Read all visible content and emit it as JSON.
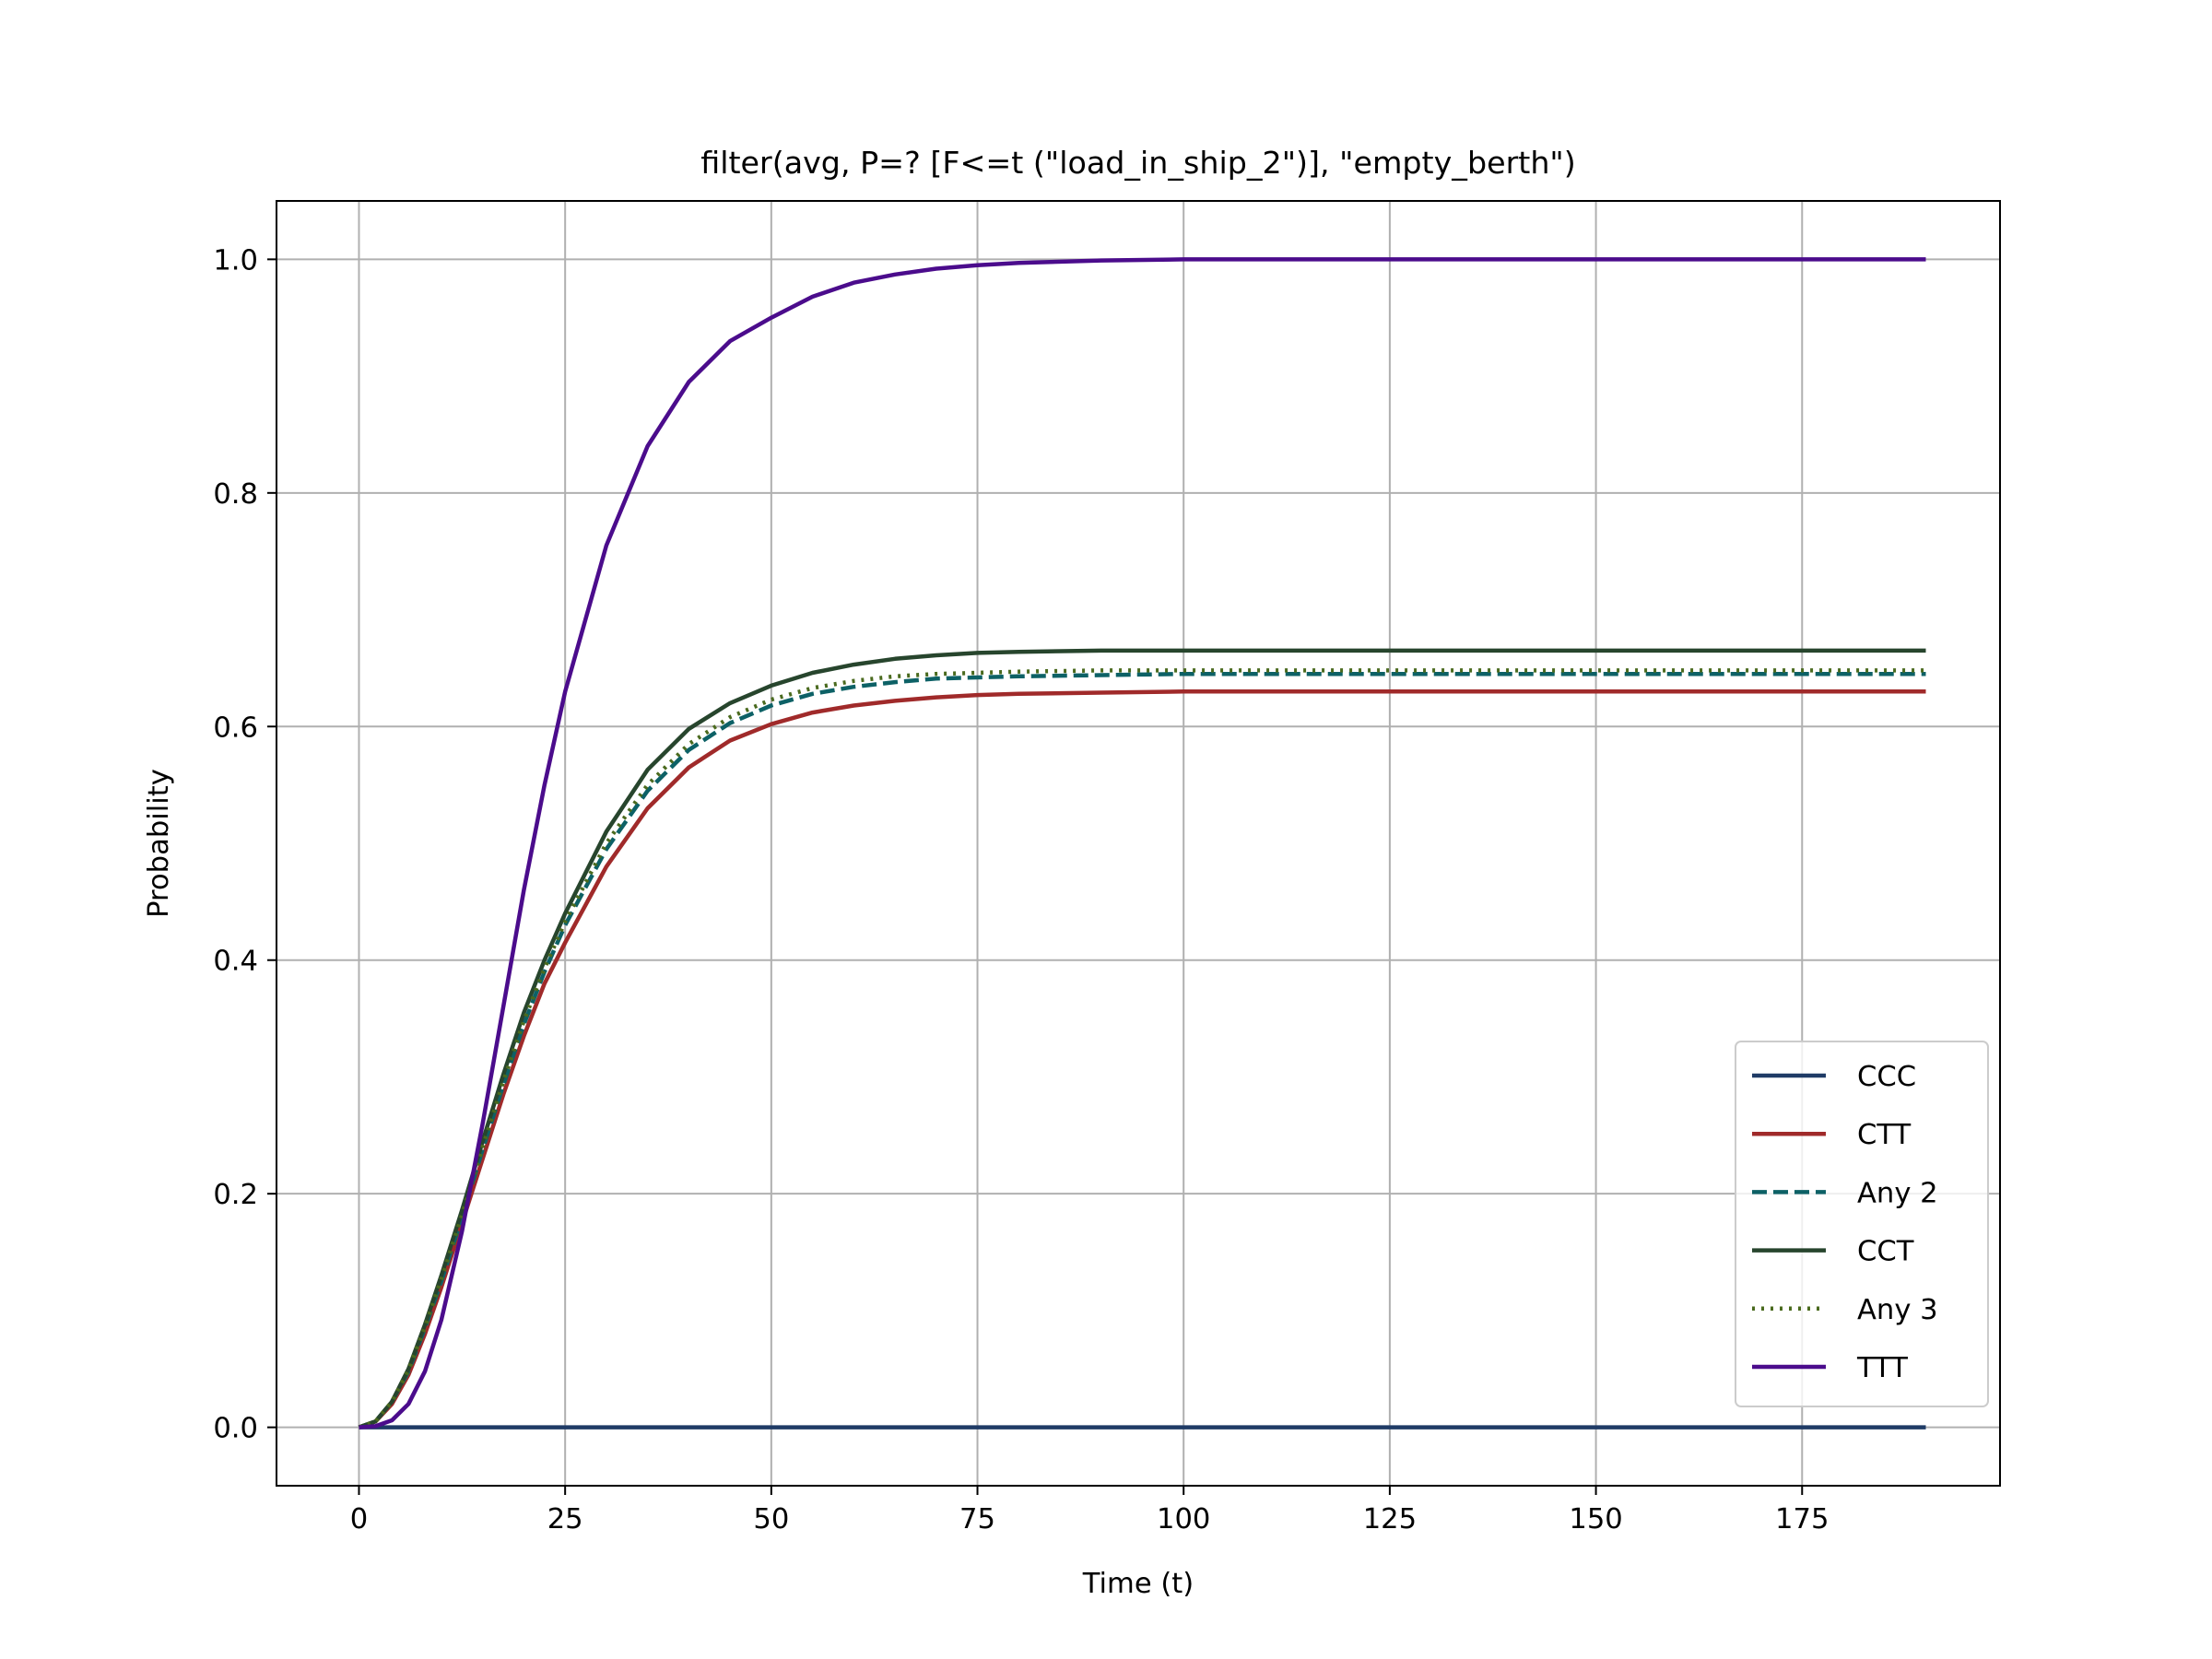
{
  "chart_data": {
    "type": "line",
    "title": "filter(avg, P=? [F<=t (\"load_in_ship_2\")], \"empty_berth\")",
    "xlabel": "Time (t)",
    "ylabel": "Probability",
    "xlim": [
      -10,
      199
    ],
    "ylim": [
      -0.05,
      1.05
    ],
    "xticks": [
      0,
      25,
      50,
      75,
      100,
      125,
      150,
      175
    ],
    "xtick_labels": [
      "0",
      "25",
      "50",
      "75",
      "100",
      "125",
      "150",
      "175"
    ],
    "yticks": [
      0.0,
      0.2,
      0.4,
      0.6,
      0.8,
      1.0
    ],
    "ytick_labels": [
      "0.0",
      "0.2",
      "0.4",
      "0.6",
      "0.8",
      "1.0"
    ],
    "grid": true,
    "legend_position": "lower-right",
    "x": [
      0,
      2,
      4,
      6,
      8,
      10,
      12.5,
      15,
      17.5,
      20,
      22.5,
      25,
      30,
      35,
      40,
      45,
      50,
      55,
      60,
      65,
      70,
      75,
      80,
      90,
      100,
      110,
      125,
      150,
      175,
      190
    ],
    "series": [
      {
        "name": "CCC",
        "color": "#1f3b66",
        "dash": "solid",
        "values": [
          0,
          0,
          0,
          0,
          0,
          0,
          0,
          0,
          0,
          0,
          0,
          0,
          0,
          0,
          0,
          0,
          0,
          0,
          0,
          0,
          0,
          0,
          0,
          0,
          0,
          0,
          0,
          0,
          0,
          0
        ]
      },
      {
        "name": "CTT",
        "color": "#a02a2a",
        "dash": "solid",
        "values": [
          0,
          0.005,
          0.02,
          0.045,
          0.08,
          0.12,
          0.175,
          0.23,
          0.285,
          0.335,
          0.38,
          0.415,
          0.48,
          0.53,
          0.565,
          0.588,
          0.602,
          0.612,
          0.618,
          0.622,
          0.625,
          0.627,
          0.628,
          0.629,
          0.63,
          0.63,
          0.63,
          0.63,
          0.63,
          0.63
        ]
      },
      {
        "name": "Any 2",
        "color": "#0d6166",
        "dash": "dashed",
        "values": [
          0,
          0.005,
          0.022,
          0.048,
          0.085,
          0.125,
          0.18,
          0.238,
          0.293,
          0.345,
          0.39,
          0.43,
          0.495,
          0.545,
          0.58,
          0.603,
          0.618,
          0.628,
          0.634,
          0.638,
          0.641,
          0.642,
          0.643,
          0.644,
          0.645,
          0.645,
          0.645,
          0.645,
          0.645,
          0.645
        ]
      },
      {
        "name": "CCT",
        "color": "#27452d",
        "dash": "solid",
        "values": [
          0,
          0.005,
          0.022,
          0.05,
          0.088,
          0.13,
          0.186,
          0.245,
          0.302,
          0.355,
          0.4,
          0.44,
          0.51,
          0.563,
          0.598,
          0.62,
          0.635,
          0.646,
          0.653,
          0.658,
          0.661,
          0.663,
          0.664,
          0.665,
          0.665,
          0.665,
          0.665,
          0.665,
          0.665,
          0.665
        ]
      },
      {
        "name": "Any 3",
        "color": "#4a6a1e",
        "dash": "dotted",
        "values": [
          0,
          0.005,
          0.022,
          0.049,
          0.086,
          0.127,
          0.182,
          0.24,
          0.296,
          0.348,
          0.393,
          0.433,
          0.5,
          0.55,
          0.585,
          0.608,
          0.623,
          0.633,
          0.639,
          0.643,
          0.645,
          0.646,
          0.647,
          0.648,
          0.648,
          0.648,
          0.648,
          0.648,
          0.648,
          0.648
        ]
      },
      {
        "name": "TTT",
        "color": "#4b0c8c",
        "dash": "solid",
        "values": [
          0,
          0.001,
          0.006,
          0.02,
          0.048,
          0.092,
          0.168,
          0.26,
          0.36,
          0.46,
          0.55,
          0.63,
          0.755,
          0.84,
          0.895,
          0.93,
          0.95,
          0.968,
          0.98,
          0.987,
          0.992,
          0.995,
          0.997,
          0.999,
          1.0,
          1.0,
          1.0,
          1.0,
          1.0,
          1.0
        ]
      }
    ]
  }
}
